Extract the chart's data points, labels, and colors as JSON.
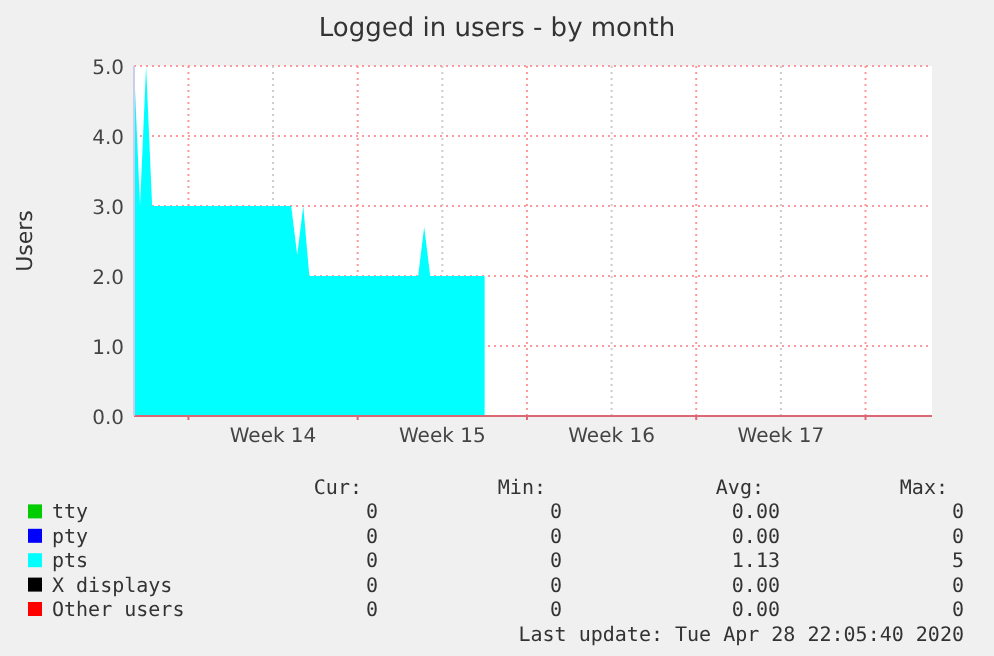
{
  "chart_data": {
    "type": "area",
    "title": "Logged in users - by month",
    "ylabel": "Users",
    "categories": [
      null,
      null,
      null,
      null,
      null,
      null,
      null,
      null,
      null,
      null,
      null,
      null,
      null,
      null,
      null,
      null,
      null,
      null,
      null,
      null,
      null,
      null,
      null,
      "Week 14",
      null,
      null,
      null,
      null,
      null,
      null,
      null,
      null,
      null,
      null,
      null,
      null,
      null,
      null,
      null,
      null,
      null,
      null,
      null,
      null,
      null,
      null,
      null,
      null,
      null,
      null,
      null,
      "Week 15",
      null,
      null,
      null,
      null,
      null,
      null,
      null,
      null,
      null,
      null,
      null,
      null,
      null,
      null,
      null,
      null,
      null,
      null,
      null,
      null,
      null,
      null,
      null,
      null,
      null,
      null,
      null,
      "Week 16",
      null,
      null,
      null,
      null,
      null,
      null,
      null,
      null,
      null,
      null,
      null,
      null,
      null,
      null,
      null,
      null,
      null,
      null,
      null,
      null,
      null,
      null,
      null,
      null,
      null,
      null,
      null,
      "Week 17",
      null,
      null,
      null,
      null,
      null,
      null,
      null,
      null,
      null,
      null,
      null,
      null,
      null,
      null,
      null,
      null,
      null,
      null,
      null,
      null,
      null,
      null,
      null,
      null,
      null
    ],
    "ylim": [
      0,
      5
    ],
    "yticks": [
      {
        "value": 0,
        "label": "0.0"
      },
      {
        "value": 1,
        "label": "1.0"
      },
      {
        "value": 2,
        "label": "2.0"
      },
      {
        "value": 3,
        "label": "3.0"
      },
      {
        "value": 4,
        "label": "4.0"
      },
      {
        "value": 5,
        "label": "5.0"
      }
    ],
    "series": [
      {
        "name": "tty",
        "color": "#00cc00",
        "values": [
          null,
          null,
          null,
          null,
          null,
          null,
          null,
          null,
          null,
          null,
          null,
          null,
          null,
          null,
          null,
          null,
          null,
          null,
          null,
          null,
          null,
          null,
          null,
          null,
          null,
          null,
          null,
          null,
          null,
          null,
          null,
          null,
          null,
          null,
          null,
          null,
          null,
          null,
          null,
          null,
          null,
          null,
          null,
          null,
          null,
          null,
          null,
          null,
          null,
          null,
          null,
          null,
          null,
          null,
          null,
          null,
          null,
          null,
          null,
          null,
          null,
          null,
          null,
          null,
          null,
          null,
          null,
          null,
          null,
          null,
          null,
          null,
          null,
          null,
          null,
          null,
          null,
          null,
          null,
          null,
          null,
          null,
          null,
          null,
          null,
          null,
          null,
          null,
          null,
          null,
          null,
          null,
          null,
          null,
          null,
          null,
          null,
          null,
          null,
          null,
          null,
          null,
          null,
          null,
          null,
          null,
          null,
          null,
          null,
          null,
          null,
          null,
          null,
          null,
          null,
          null,
          null,
          null,
          null,
          null,
          null,
          null,
          null,
          null,
          null,
          null,
          null,
          null,
          null,
          null,
          null,
          null,
          null
        ]
      },
      {
        "name": "pty",
        "color": "#0000ff",
        "values": [
          null,
          null,
          null,
          null,
          null,
          null,
          null,
          null,
          null,
          null,
          null,
          null,
          null,
          null,
          null,
          null,
          null,
          null,
          null,
          null,
          null,
          null,
          null,
          null,
          null,
          null,
          null,
          null,
          null,
          null,
          null,
          null,
          null,
          null,
          null,
          null,
          null,
          null,
          null,
          null,
          null,
          null,
          null,
          null,
          null,
          null,
          null,
          null,
          null,
          null,
          null,
          null,
          null,
          null,
          null,
          null,
          null,
          null,
          null,
          null,
          null,
          null,
          null,
          null,
          null,
          null,
          null,
          null,
          null,
          null,
          null,
          null,
          null,
          null,
          null,
          null,
          null,
          null,
          null,
          null,
          null,
          null,
          null,
          null,
          null,
          null,
          null,
          null,
          null,
          null,
          null,
          null,
          null,
          null,
          null,
          null,
          null,
          null,
          null,
          null,
          null,
          null,
          null,
          null,
          null,
          null,
          null,
          null,
          null,
          null,
          null,
          null,
          null,
          null,
          null,
          null,
          null,
          null,
          null,
          null,
          null,
          null,
          null,
          null,
          null,
          null,
          null,
          null,
          null,
          null,
          null,
          null,
          null
        ]
      },
      {
        "name": "pts",
        "color": "#00ffff",
        "values": [
          5,
          3,
          5,
          3,
          3,
          3,
          3,
          3,
          3,
          3,
          3,
          3,
          3,
          3,
          3,
          3,
          3,
          3,
          3,
          3,
          3,
          3,
          3,
          3,
          3,
          3,
          3,
          2.3,
          3,
          2,
          2,
          2,
          2,
          2,
          2,
          2,
          2,
          2,
          2,
          2,
          2,
          2,
          2,
          2,
          2,
          2,
          2,
          2,
          2.7,
          2,
          2,
          2,
          2,
          2,
          2,
          2,
          2,
          2,
          2,
          null,
          null,
          null,
          null,
          null,
          null,
          null,
          null,
          null,
          null,
          null,
          null,
          null,
          null,
          null,
          null,
          null,
          null,
          null,
          null,
          null,
          null,
          null,
          null,
          null,
          null,
          null,
          null,
          null,
          null,
          null,
          null,
          null,
          null,
          null,
          null,
          null,
          null,
          null,
          null,
          null,
          null,
          null,
          null,
          null,
          null,
          null,
          null,
          null,
          null,
          null,
          null,
          null,
          null,
          null,
          null,
          null,
          null,
          null,
          null,
          null,
          null,
          null,
          null,
          null,
          null,
          null,
          null,
          null,
          null,
          null,
          null,
          null,
          null
        ]
      },
      {
        "name": "X displays",
        "color": "#000000",
        "values": [
          null,
          null,
          null,
          null,
          null,
          null,
          null,
          null,
          null,
          null,
          null,
          null,
          null,
          null,
          null,
          null,
          null,
          null,
          null,
          null,
          null,
          null,
          null,
          null,
          null,
          null,
          null,
          null,
          null,
          null,
          null,
          null,
          null,
          null,
          null,
          null,
          null,
          null,
          null,
          null,
          null,
          null,
          null,
          null,
          null,
          null,
          null,
          null,
          null,
          null,
          null,
          null,
          null,
          null,
          null,
          null,
          null,
          null,
          null,
          null,
          null,
          null,
          null,
          null,
          null,
          null,
          null,
          null,
          null,
          null,
          null,
          null,
          null,
          null,
          null,
          null,
          null,
          null,
          null,
          null,
          null,
          null,
          null,
          null,
          null,
          null,
          null,
          null,
          null,
          null,
          null,
          null,
          null,
          null,
          null,
          null,
          null,
          null,
          null,
          null,
          null,
          null,
          null,
          null,
          null,
          null,
          null,
          null,
          null,
          null,
          null,
          null,
          null,
          null,
          null,
          null,
          null,
          null,
          null,
          null,
          null,
          null,
          null,
          null,
          null,
          null,
          null,
          null,
          null,
          null,
          null,
          null,
          null
        ]
      },
      {
        "name": "Other users",
        "color": "#ff0000",
        "values": [
          null,
          null,
          null,
          null,
          null,
          null,
          null,
          null,
          null,
          null,
          null,
          null,
          null,
          null,
          null,
          null,
          null,
          null,
          null,
          null,
          null,
          null,
          null,
          null,
          null,
          null,
          null,
          null,
          null,
          null,
          null,
          null,
          null,
          null,
          null,
          null,
          null,
          null,
          null,
          null,
          null,
          null,
          null,
          null,
          null,
          null,
          null,
          null,
          null,
          null,
          null,
          null,
          null,
          null,
          null,
          null,
          null,
          null,
          null,
          null,
          null,
          null,
          null,
          null,
          null,
          null,
          null,
          null,
          null,
          null,
          null,
          null,
          null,
          null,
          null,
          null,
          null,
          null,
          null,
          null,
          null,
          null,
          null,
          null,
          null,
          null,
          null,
          null,
          null,
          null,
          null,
          null,
          null,
          null,
          null,
          null,
          null,
          null,
          null,
          null,
          null,
          null,
          null,
          null,
          null,
          null,
          null,
          null,
          null,
          null,
          null,
          null,
          null,
          null,
          null,
          null,
          null,
          null,
          null,
          null,
          null,
          null,
          null,
          null,
          null,
          null,
          null,
          null,
          null,
          null,
          null,
          null,
          null
        ]
      }
    ],
    "grid": true,
    "legend": "bottom",
    "annotations": [
      "Cur:",
      "Min:",
      "Avg:",
      "Max:",
      "0",
      "0",
      "0.00",
      "0",
      "0",
      "0",
      "0.00",
      "0",
      "0",
      "0",
      "1.13",
      "5",
      "0",
      "0",
      "0.00",
      "0",
      "0",
      "0",
      "0.00",
      "0",
      "Last update: Tue Apr 28 22:05:40 2020"
    ]
  }
}
